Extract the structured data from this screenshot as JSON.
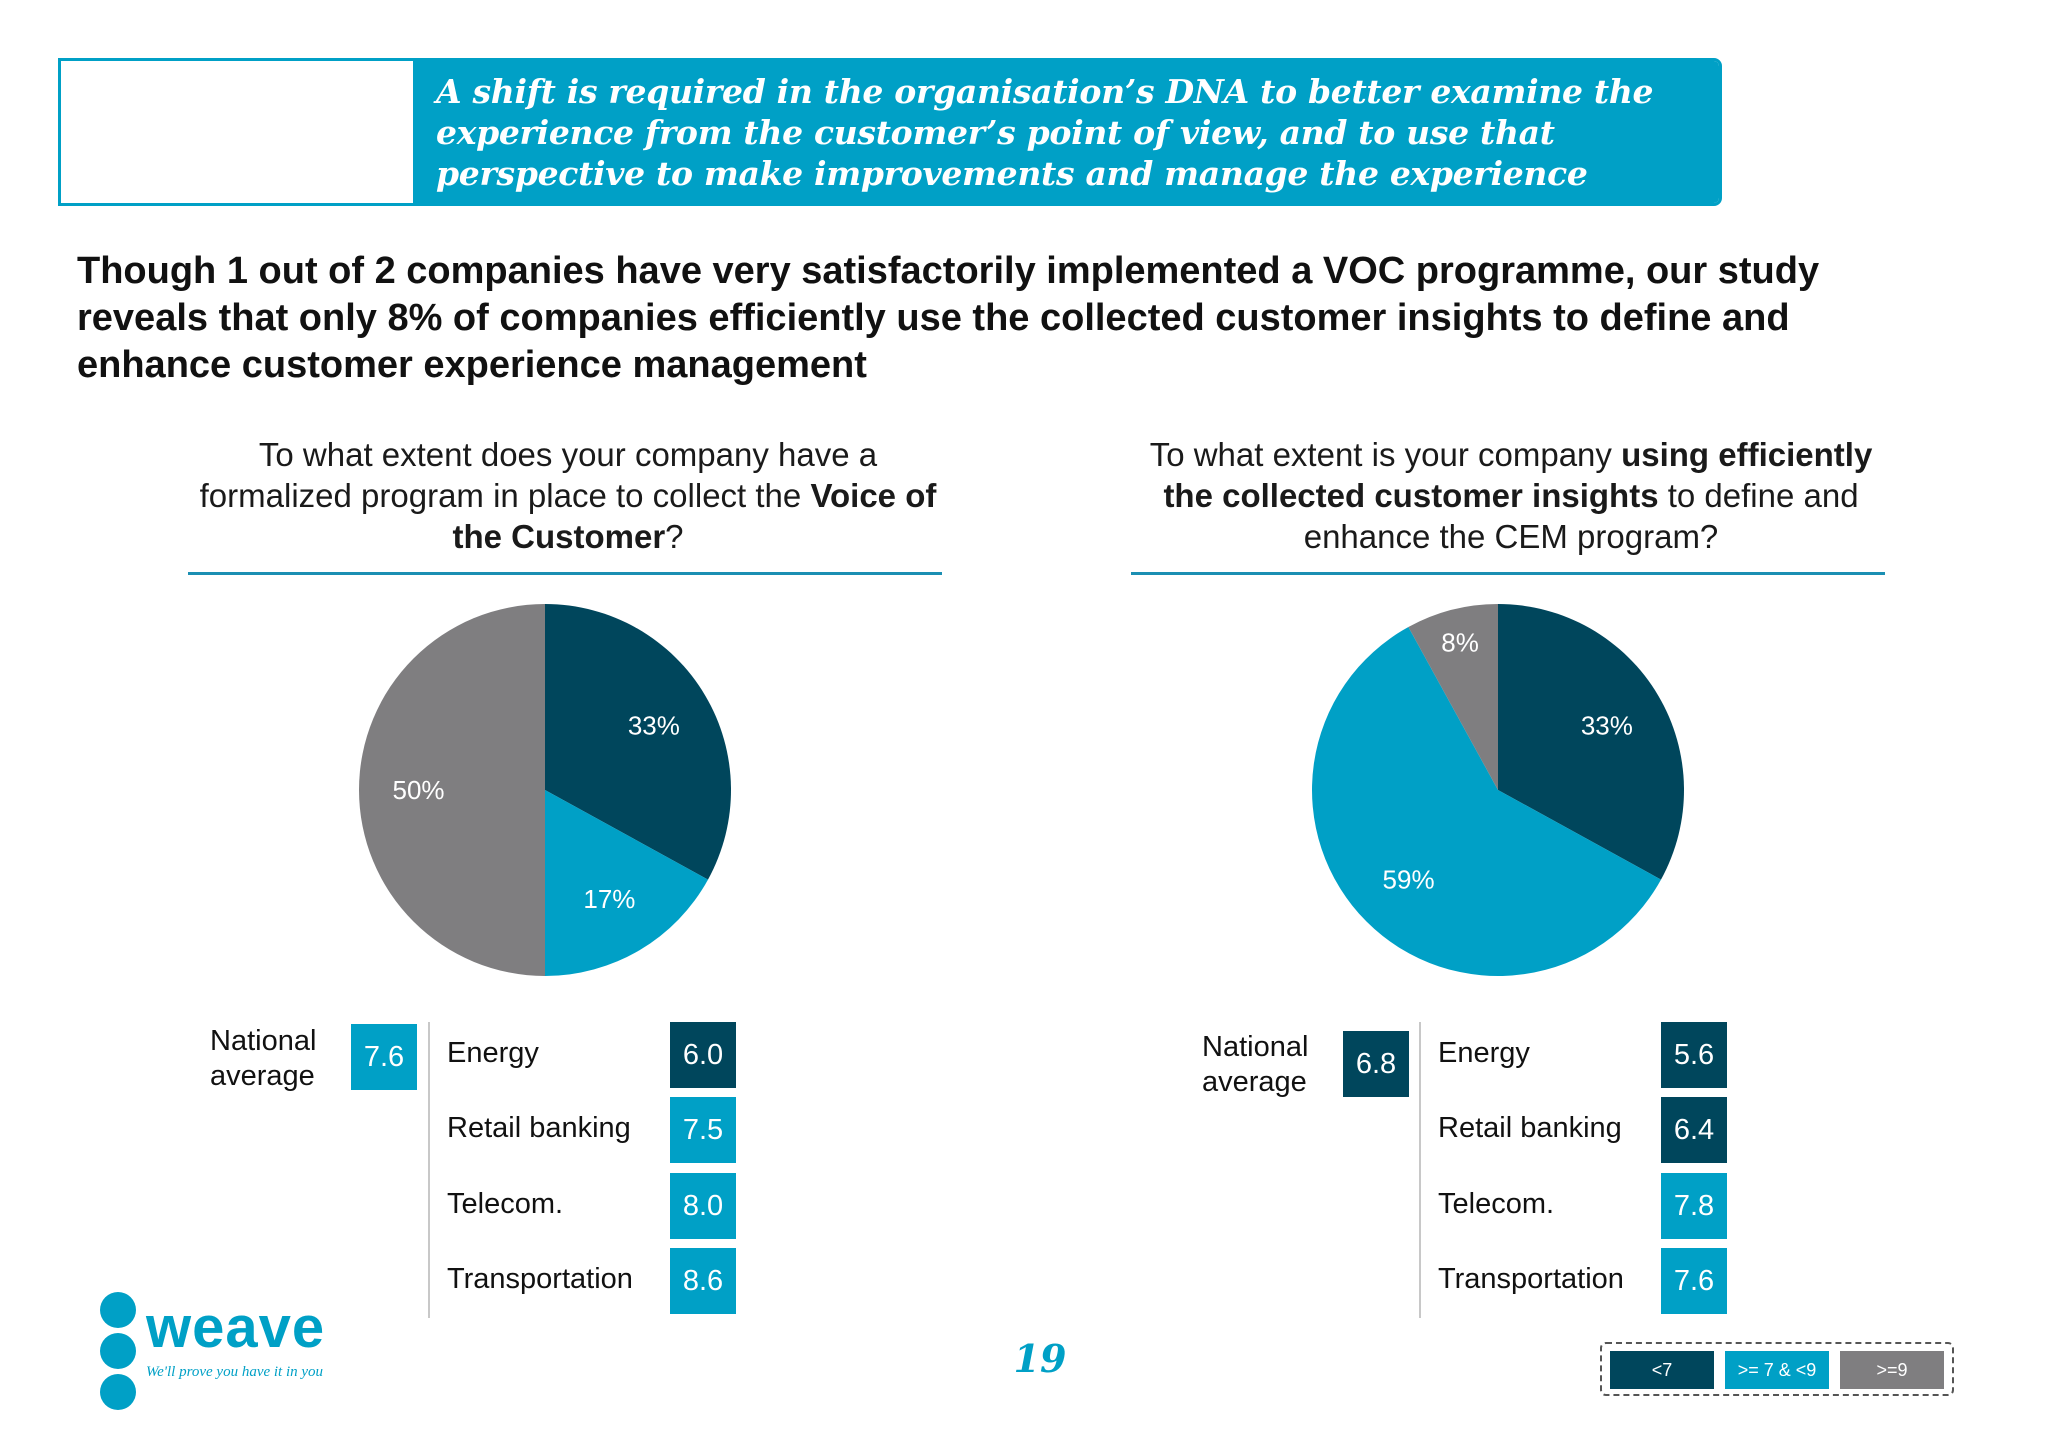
{
  "banner": {
    "text": "A shift is required in the organisation’s DNA to better examine the experience from the customer’s point of view, and to use that perspective to make improvements and manage the experience"
  },
  "headline": "Though 1 out of 2 companies have very satisfactorily implemented a VOC programme, our study reveals that only 8% of companies efficiently use the collected customer insights to define and enhance customer experience management",
  "colors": {
    "dark": "#00465c",
    "mid": "#00a0c6",
    "grey": "#7f7e80",
    "rule": "#1b8fb3"
  },
  "left_panel": {
    "question": {
      "part1": "To what extent  does your company have a formalized program in place to collect the ",
      "bold": "Voice of the Customer",
      "part2": "?"
    },
    "national_label": "National average",
    "national_value": "7.6",
    "national_level": "mid",
    "sectors": [
      {
        "name": "Energy",
        "value": "6.0",
        "level": "dark"
      },
      {
        "name": "Retail banking",
        "value": "7.5",
        "level": "mid"
      },
      {
        "name": "Telecom.",
        "value": "8.0",
        "level": "mid"
      },
      {
        "name": "Transportation",
        "value": "8.6",
        "level": "mid"
      }
    ]
  },
  "right_panel": {
    "question": {
      "part1": "To what extent is your company ",
      "bold": "using efficiently the collected customer insights",
      "part2": " to define and enhance the CEM program?"
    },
    "national_label": "National average",
    "national_value": "6.8",
    "national_level": "dark",
    "sectors": [
      {
        "name": "Energy",
        "value": "5.6",
        "level": "dark"
      },
      {
        "name": "Retail banking",
        "value": "6.4",
        "level": "dark"
      },
      {
        "name": "Telecom.",
        "value": "7.8",
        "level": "mid"
      },
      {
        "name": "Transportation",
        "value": "7.6",
        "level": "mid"
      }
    ]
  },
  "chart_data": [
    {
      "type": "pie",
      "values": [
        33,
        17,
        50
      ],
      "labels": [
        "33%",
        "17%",
        "50%"
      ],
      "colors": [
        "#00465c",
        "#00a0c6",
        "#7f7e80"
      ]
    },
    {
      "type": "pie",
      "values": [
        33,
        59,
        8
      ],
      "labels": [
        "33%",
        "59%",
        "8%"
      ],
      "colors": [
        "#00465c",
        "#00a0c6",
        "#7f7e80"
      ]
    }
  ],
  "legend": [
    {
      "label": "<7",
      "color": "#00465c"
    },
    {
      "label": ">= 7 & <9",
      "color": "#00a0c6"
    },
    {
      "label": ">=9",
      "color": "#7f7e80"
    }
  ],
  "logo": {
    "word": "weave",
    "tagline": "We'll prove you have it in you"
  },
  "page_number": "19"
}
